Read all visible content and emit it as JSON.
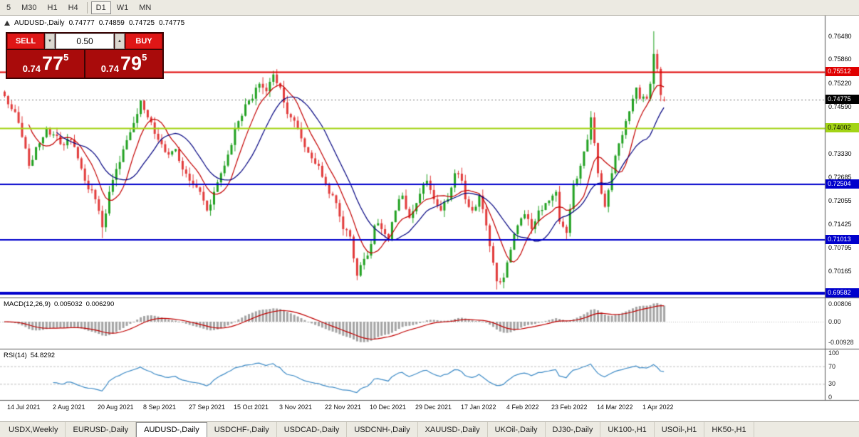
{
  "toolbar": {
    "periods": [
      {
        "label": "5",
        "active": false
      },
      {
        "label": "M30",
        "active": false
      },
      {
        "label": "H1",
        "active": false
      },
      {
        "label": "H4",
        "active": false
      },
      {
        "label": "D1",
        "active": true
      },
      {
        "label": "W1",
        "active": false
      },
      {
        "label": "MN",
        "active": false
      }
    ]
  },
  "chart_header": {
    "title": "AUDUSD-,Daily",
    "open": "0.74777",
    "high": "0.74859",
    "low": "0.74725",
    "close": "0.74775"
  },
  "trade_panel": {
    "sell_label": "SELL",
    "buy_label": "BUY",
    "volume": "0.50",
    "volume_down_glyph": "▼",
    "volume_up_glyph": "▲",
    "sell_price_prefix": "0.74",
    "sell_price_big": "77",
    "sell_price_sup": "5",
    "buy_price_prefix": "0.74",
    "buy_price_big": "79",
    "buy_price_sup": "5"
  },
  "chart_data": {
    "type": "candlestick",
    "symbol": "AUDUSD-",
    "timeframe": "Daily",
    "current": {
      "open": 0.74777,
      "high": 0.74859,
      "low": 0.74725,
      "close": 0.74775
    },
    "y_axis": {
      "ticks": [
        0.7648,
        0.7586,
        0.7522,
        0.7459,
        0.7333,
        0.72685,
        0.72055,
        0.71425,
        0.70795,
        0.70165
      ],
      "decimals": 5
    },
    "price_lines": [
      {
        "price": 0.75512,
        "color": "#e00000",
        "width": 2,
        "text_color": "#ffffff"
      },
      {
        "price": 0.74002,
        "color": "#a3d416",
        "width": 2,
        "text_color": "#000000"
      },
      {
        "price": 0.72504,
        "color": "#0000cc",
        "width": 2,
        "text_color": "#ffffff"
      },
      {
        "price": 0.71013,
        "color": "#0000cc",
        "width": 2,
        "text_color": "#ffffff"
      },
      {
        "price": 0.69582,
        "color": "#0000cc",
        "width": 4,
        "text_color": "#ffffff"
      }
    ],
    "current_price_marker": {
      "price": 0.74775,
      "color": "#000000",
      "text_color": "#ffffff"
    },
    "x_labels": [
      "14 Jul 2021",
      "2 Aug 2021",
      "20 Aug 2021",
      "8 Sep 2021",
      "27 Sep 2021",
      "15 Oct 2021",
      "3 Nov 2021",
      "22 Nov 2021",
      "10 Dec 2021",
      "29 Dec 2021",
      "17 Jan 2022",
      "4 Feb 2022",
      "23 Feb 2022",
      "14 Mar 2022",
      "1 Apr 2022"
    ],
    "x_label_start_index": 2,
    "x_label_step": 13,
    "candle_count": 190,
    "price_waypoints": [
      [
        0,
        0.7487
      ],
      [
        2,
        0.7452
      ],
      [
        4,
        0.7415
      ],
      [
        7,
        0.73
      ],
      [
        9,
        0.735
      ],
      [
        12,
        0.74
      ],
      [
        15,
        0.738
      ],
      [
        17,
        0.7355
      ],
      [
        19,
        0.737
      ],
      [
        21,
        0.732
      ],
      [
        23,
        0.726
      ],
      [
        26,
        0.721
      ],
      [
        28,
        0.7135
      ],
      [
        30,
        0.723
      ],
      [
        33,
        0.731
      ],
      [
        36,
        0.739
      ],
      [
        39,
        0.7475
      ],
      [
        41,
        0.743
      ],
      [
        44,
        0.737
      ],
      [
        47,
        0.733
      ],
      [
        49,
        0.7345
      ],
      [
        51,
        0.729
      ],
      [
        54,
        0.725
      ],
      [
        56,
        0.723
      ],
      [
        58,
        0.718
      ],
      [
        60,
        0.723
      ],
      [
        62,
        0.728
      ],
      [
        64,
        0.733
      ],
      [
        66,
        0.74
      ],
      [
        67,
        0.742
      ],
      [
        69,
        0.7465
      ],
      [
        71,
        0.748
      ],
      [
        73,
        0.752
      ],
      [
        75,
        0.75
      ],
      [
        77,
        0.7545
      ],
      [
        79,
        0.751
      ],
      [
        80,
        0.747
      ],
      [
        82,
        0.743
      ],
      [
        84,
        0.74
      ],
      [
        86,
        0.735
      ],
      [
        88,
        0.732
      ],
      [
        90,
        0.73
      ],
      [
        93,
        0.7225
      ],
      [
        95,
        0.72
      ],
      [
        97,
        0.713
      ],
      [
        99,
        0.711
      ],
      [
        101,
        0.7005
      ],
      [
        103,
        0.705
      ],
      [
        105,
        0.709
      ],
      [
        106,
        0.714
      ],
      [
        108,
        0.713
      ],
      [
        110,
        0.71
      ],
      [
        112,
        0.718
      ],
      [
        114,
        0.722
      ],
      [
        116,
        0.716
      ],
      [
        118,
        0.72
      ],
      [
        119,
        0.7225
      ],
      [
        121,
        0.726
      ],
      [
        123,
        0.721
      ],
      [
        125,
        0.718
      ],
      [
        127,
        0.721
      ],
      [
        129,
        0.728
      ],
      [
        131,
        0.726
      ],
      [
        132,
        0.721
      ],
      [
        134,
        0.718
      ],
      [
        136,
        0.722
      ],
      [
        138,
        0.714
      ],
      [
        140,
        0.704
      ],
      [
        141,
        0.699
      ],
      [
        143,
        0.7
      ],
      [
        145,
        0.7075
      ],
      [
        147,
        0.714
      ],
      [
        149,
        0.717
      ],
      [
        151,
        0.713
      ],
      [
        153,
        0.718
      ],
      [
        155,
        0.72
      ],
      [
        157,
        0.722
      ],
      [
        158,
        0.723
      ],
      [
        159,
        0.715
      ],
      [
        161,
        0.712
      ],
      [
        163,
        0.725
      ],
      [
        165,
        0.73
      ],
      [
        167,
        0.737
      ],
      [
        168,
        0.743
      ],
      [
        170,
        0.728
      ],
      [
        172,
        0.719
      ],
      [
        174,
        0.728
      ],
      [
        176,
        0.736
      ],
      [
        178,
        0.742
      ],
      [
        180,
        0.748
      ],
      [
        181,
        0.751
      ],
      [
        182,
        0.748
      ],
      [
        184,
        0.748
      ],
      [
        185,
        0.752
      ],
      [
        186,
        0.76
      ],
      [
        187,
        0.756
      ],
      [
        188,
        0.749
      ],
      [
        189,
        0.74775
      ]
    ],
    "wick_overrides": [
      {
        "i": 28,
        "low": 0.7106
      },
      {
        "i": 77,
        "high": 0.7555
      },
      {
        "i": 101,
        "low": 0.6993
      },
      {
        "i": 141,
        "low": 0.6968
      },
      {
        "i": 186,
        "high": 0.7661
      }
    ],
    "overlays": [
      {
        "type": "sma",
        "period": 8,
        "color": "#c40000"
      },
      {
        "type": "sma",
        "period": 16,
        "color": "#000080"
      }
    ],
    "indicators": {
      "macd": {
        "title": "MACD(12,26,9)",
        "value_main": "0.005032",
        "value_signal": "0.006290",
        "fast": 12,
        "slow": 26,
        "signal": 9,
        "axis_ticks": [
          "0.00806",
          "0.00",
          "-0.00928"
        ],
        "axis_values": [
          0.00806,
          0,
          -0.00928
        ],
        "histogram_color": "#a4a4a4",
        "signal_color": "#c00000"
      },
      "rsi": {
        "title": "RSI(14)",
        "value": "54.8292",
        "period": 14,
        "levels": [
          100,
          70,
          30,
          0
        ],
        "line_color": "#3f8cc7",
        "level_line_color": "#c0c0c0"
      }
    },
    "colors": {
      "up": "#21a121",
      "down": "#e23b3b",
      "bg": "#ffffff",
      "axis_text": "#000000"
    }
  },
  "bottom_tabs": {
    "tabs": [
      "USDX,Weekly",
      "EURUSD-,Daily",
      "AUDUSD-,Daily",
      "USDCHF-,Daily",
      "USDCAD-,Daily",
      "USDCNH-,Daily",
      "XAUUSD-,Daily",
      "UKOil-,Daily",
      "DJ30-,Daily",
      "UK100-,H1",
      "USOil-,H1",
      "HK50-,H1"
    ],
    "active_index": 2
  }
}
